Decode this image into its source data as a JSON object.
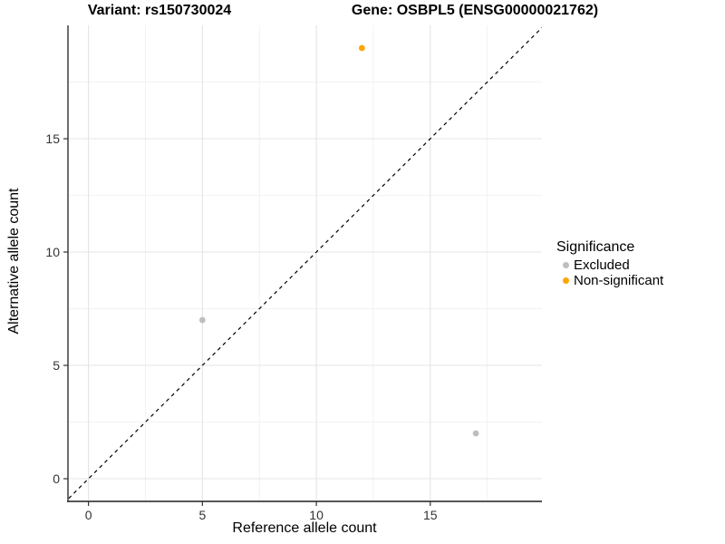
{
  "chart_data": {
    "type": "scatter",
    "titles": {
      "left": "Variant: rs150730024",
      "right": "Gene: OSBPL5 (ENSG00000021762)"
    },
    "xlabel": "Reference allele count",
    "ylabel": "Alternative allele count",
    "xlim": [
      -0.9,
      19.9
    ],
    "ylim": [
      -1.0,
      20.0
    ],
    "x_ticks": [
      0,
      5,
      10,
      15
    ],
    "y_ticks": [
      0,
      5,
      10,
      15
    ],
    "x_minor_ticks": [
      2.5,
      7.5,
      12.5,
      17.5
    ],
    "y_minor_ticks": [
      2.5,
      7.5,
      12.5,
      17.5
    ],
    "grid": true,
    "reference_line": {
      "kind": "identity",
      "slope": 1,
      "intercept": 0,
      "style": "dashed",
      "color": "#000000"
    },
    "series": [
      {
        "name": "Excluded",
        "color": "#BEBEBE",
        "points": [
          {
            "x": 5,
            "y": 7
          },
          {
            "x": 17,
            "y": 2
          }
        ]
      },
      {
        "name": "Non-significant",
        "color": "#FFA500",
        "points": [
          {
            "x": 12,
            "y": 19
          }
        ]
      }
    ],
    "legend": {
      "title": "Significance",
      "position": "right",
      "items": [
        {
          "label": "Excluded",
          "color": "#BEBEBE"
        },
        {
          "label": "Non-significant",
          "color": "#FFA500"
        }
      ]
    },
    "style_colors": {
      "major_grid": "#E4E4E4",
      "minor_grid": "#F2F2F2",
      "axis_line": "#3F3F3F",
      "tick_mark": "#333333",
      "tick_label": "#333333"
    }
  }
}
